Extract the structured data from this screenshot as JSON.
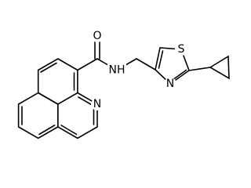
{
  "atom_labels": [
    "O",
    "NH",
    "S",
    "N",
    "N"
  ]
}
